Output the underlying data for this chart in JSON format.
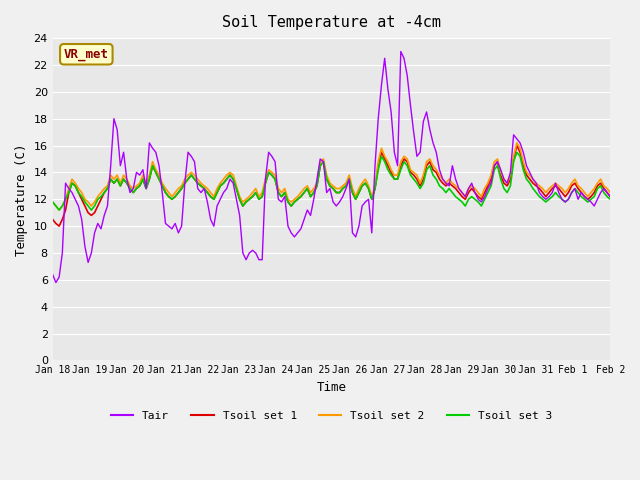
{
  "title": "Soil Temperature at -4cm",
  "xlabel": "Time",
  "ylabel": "Temperature (C)",
  "ylim": [
    0,
    24
  ],
  "yticks": [
    0,
    2,
    4,
    6,
    8,
    10,
    12,
    14,
    16,
    18,
    20,
    22,
    24
  ],
  "bg_color": "#e8e8e8",
  "fig_color": "#f0f0f0",
  "line_colors": {
    "Tair": "#aa00ff",
    "Tsoil1": "#dd0000",
    "Tsoil2": "#ff9900",
    "Tsoil3": "#00cc00"
  },
  "legend_labels": [
    "Tair",
    "Tsoil set 1",
    "Tsoil set 2",
    "Tsoil set 3"
  ],
  "annotation_text": "VR_met",
  "annotation_bg": "#ffffcc",
  "annotation_border": "#aa8800",
  "annotation_text_color": "#880000",
  "font_family": "monospace",
  "n_days": 16,
  "start_day": 18,
  "xtick_labels": [
    "Jan 18",
    "Jan 19",
    "Jan 20",
    "Jan 21",
    "Jan 22",
    "Jan 23",
    "Jan 24",
    "Jan 25",
    "Jan 26",
    "Jan 27",
    "Jan 28",
    "Jan 29",
    "Jan 30",
    "Jan 31",
    "Feb 1",
    "Feb 2"
  ],
  "tair": [
    6.4,
    5.8,
    6.2,
    8.0,
    13.2,
    12.8,
    12.5,
    12.0,
    11.5,
    10.5,
    8.5,
    7.3,
    8.0,
    9.5,
    10.2,
    9.8,
    10.8,
    11.5,
    14.5,
    18.0,
    17.2,
    14.5,
    15.5,
    13.5,
    12.5,
    12.8,
    14.0,
    13.8,
    14.2,
    12.8,
    16.2,
    15.8,
    15.5,
    14.5,
    12.5,
    10.2,
    10.0,
    9.8,
    10.2,
    9.5,
    10.0,
    13.2,
    15.5,
    15.2,
    14.8,
    12.8,
    12.5,
    12.8,
    11.8,
    10.5,
    10.0,
    11.5,
    12.0,
    12.5,
    12.8,
    13.5,
    13.2,
    12.0,
    10.8,
    8.0,
    7.5,
    8.0,
    8.2,
    8.0,
    7.5,
    7.5,
    13.5,
    15.5,
    15.2,
    14.8,
    12.0,
    11.8,
    12.2,
    10.0,
    9.5,
    9.2,
    9.5,
    9.8,
    10.5,
    11.2,
    10.8,
    12.0,
    13.5,
    15.0,
    14.8,
    12.5,
    12.8,
    11.8,
    11.5,
    11.8,
    12.2,
    12.8,
    13.5,
    9.5,
    9.2,
    10.0,
    11.5,
    11.8,
    12.0,
    9.5,
    14.5,
    18.0,
    20.5,
    22.5,
    20.2,
    18.5,
    15.5,
    14.5,
    23.0,
    22.5,
    21.2,
    19.0,
    17.0,
    15.2,
    15.5,
    17.8,
    18.5,
    17.2,
    16.2,
    15.5,
    14.2,
    13.5,
    13.2,
    13.0,
    14.5,
    13.5,
    12.8,
    12.5,
    12.2,
    12.8,
    13.2,
    12.5,
    12.0,
    11.8,
    12.2,
    12.8,
    13.2,
    14.5,
    14.8,
    14.2,
    13.5,
    13.2,
    14.0,
    16.8,
    16.5,
    16.2,
    15.5,
    14.5,
    14.0,
    13.5,
    13.2,
    12.5,
    12.2,
    12.0,
    12.2,
    12.5,
    13.2,
    12.5,
    12.0,
    11.8,
    12.0,
    12.5,
    12.8,
    12.0,
    12.5,
    12.2,
    12.0,
    11.8,
    11.5,
    12.0,
    12.5,
    12.8,
    12.5,
    12.2
  ],
  "tsoil1": [
    10.5,
    10.2,
    10.0,
    10.5,
    11.2,
    12.5,
    13.2,
    13.0,
    12.5,
    12.0,
    11.5,
    11.0,
    10.8,
    11.0,
    11.5,
    12.0,
    12.5,
    12.8,
    13.5,
    13.2,
    13.5,
    13.0,
    13.5,
    13.2,
    12.8,
    12.5,
    12.8,
    13.0,
    13.5,
    12.8,
    13.5,
    14.5,
    14.0,
    13.5,
    13.0,
    12.5,
    12.2,
    12.0,
    12.2,
    12.5,
    12.8,
    13.2,
    13.5,
    13.8,
    13.5,
    13.2,
    13.0,
    12.8,
    12.5,
    12.2,
    12.0,
    12.5,
    13.0,
    13.2,
    13.5,
    13.8,
    13.5,
    12.8,
    12.0,
    11.5,
    11.8,
    12.0,
    12.2,
    12.5,
    12.0,
    12.2,
    13.2,
    14.0,
    13.8,
    13.5,
    12.5,
    12.2,
    12.5,
    11.8,
    11.5,
    11.8,
    12.0,
    12.2,
    12.5,
    12.8,
    12.2,
    12.5,
    13.0,
    14.5,
    14.8,
    13.5,
    13.0,
    12.8,
    12.5,
    12.5,
    12.8,
    13.0,
    13.5,
    12.5,
    12.0,
    12.5,
    13.0,
    13.2,
    12.8,
    12.0,
    12.8,
    14.5,
    15.5,
    15.0,
    14.5,
    14.0,
    13.5,
    13.5,
    14.5,
    15.0,
    14.8,
    14.0,
    13.8,
    13.5,
    13.0,
    13.5,
    14.5,
    14.8,
    14.2,
    14.0,
    13.5,
    13.2,
    13.0,
    13.2,
    13.0,
    12.8,
    12.5,
    12.2,
    12.0,
    12.5,
    12.8,
    12.5,
    12.2,
    12.0,
    12.5,
    13.0,
    13.5,
    14.5,
    14.8,
    13.8,
    13.2,
    13.0,
    13.5,
    15.0,
    16.0,
    15.5,
    14.5,
    13.8,
    13.5,
    13.2,
    13.0,
    12.8,
    12.5,
    12.2,
    12.5,
    12.8,
    13.0,
    12.8,
    12.5,
    12.2,
    12.5,
    13.0,
    13.2,
    12.8,
    12.5,
    12.2,
    12.0,
    12.2,
    12.5,
    13.0,
    13.2,
    12.8,
    12.5,
    12.2
  ],
  "tsoil2": [
    11.8,
    11.5,
    11.2,
    11.5,
    12.0,
    12.8,
    13.5,
    13.2,
    12.8,
    12.5,
    12.0,
    11.8,
    11.5,
    11.8,
    12.2,
    12.5,
    12.8,
    13.0,
    13.8,
    13.5,
    13.8,
    13.2,
    13.8,
    13.5,
    13.0,
    12.8,
    13.0,
    13.2,
    13.8,
    13.2,
    13.8,
    14.8,
    14.2,
    13.8,
    13.2,
    12.8,
    12.5,
    12.2,
    12.5,
    12.8,
    13.0,
    13.5,
    13.8,
    14.0,
    13.8,
    13.5,
    13.2,
    13.0,
    12.8,
    12.5,
    12.2,
    12.8,
    13.2,
    13.5,
    13.8,
    14.0,
    13.8,
    13.0,
    12.2,
    11.8,
    12.0,
    12.2,
    12.5,
    12.8,
    12.2,
    12.5,
    13.5,
    14.2,
    14.0,
    13.8,
    12.8,
    12.5,
    12.8,
    12.0,
    11.8,
    12.0,
    12.2,
    12.5,
    12.8,
    13.0,
    12.5,
    12.8,
    13.2,
    14.8,
    15.0,
    13.8,
    13.2,
    13.0,
    12.8,
    12.8,
    13.0,
    13.2,
    13.8,
    12.8,
    12.2,
    12.8,
    13.2,
    13.5,
    13.0,
    12.2,
    13.0,
    14.8,
    15.8,
    15.2,
    14.8,
    14.2,
    13.8,
    13.8,
    14.8,
    15.2,
    15.0,
    14.2,
    14.0,
    13.8,
    13.2,
    13.8,
    14.8,
    15.0,
    14.5,
    14.2,
    13.8,
    13.5,
    13.2,
    13.5,
    13.2,
    13.0,
    12.8,
    12.5,
    12.2,
    12.8,
    13.0,
    12.8,
    12.5,
    12.2,
    12.8,
    13.2,
    13.8,
    14.8,
    15.0,
    14.0,
    13.5,
    13.2,
    13.8,
    15.2,
    16.2,
    15.8,
    14.8,
    14.0,
    13.8,
    13.5,
    13.2,
    13.0,
    12.8,
    12.5,
    12.8,
    13.0,
    13.2,
    13.0,
    12.8,
    12.5,
    12.8,
    13.2,
    13.5,
    13.0,
    12.8,
    12.5,
    12.2,
    12.5,
    12.8,
    13.2,
    13.5,
    13.0,
    12.8,
    12.5
  ],
  "tsoil3": [
    11.8,
    11.5,
    11.2,
    11.5,
    12.0,
    12.5,
    13.2,
    13.0,
    12.5,
    12.2,
    11.8,
    11.5,
    11.2,
    11.5,
    12.0,
    12.2,
    12.5,
    12.8,
    13.5,
    13.2,
    13.5,
    13.0,
    13.5,
    13.2,
    12.8,
    12.5,
    12.8,
    13.0,
    13.5,
    12.8,
    13.5,
    14.5,
    14.0,
    13.5,
    13.0,
    12.5,
    12.2,
    12.0,
    12.2,
    12.5,
    12.8,
    13.2,
    13.5,
    13.8,
    13.5,
    13.2,
    13.0,
    12.8,
    12.5,
    12.2,
    12.0,
    12.5,
    13.0,
    13.2,
    13.5,
    13.8,
    13.5,
    12.8,
    12.0,
    11.5,
    11.8,
    12.0,
    12.2,
    12.5,
    12.0,
    12.2,
    13.2,
    14.0,
    13.8,
    13.5,
    12.5,
    12.2,
    12.5,
    11.8,
    11.5,
    11.8,
    12.0,
    12.2,
    12.5,
    12.8,
    12.2,
    12.5,
    13.0,
    14.5,
    14.8,
    13.5,
    13.0,
    12.8,
    12.5,
    12.5,
    12.8,
    13.0,
    13.5,
    12.5,
    12.0,
    12.5,
    13.0,
    13.2,
    12.8,
    12.0,
    12.8,
    14.2,
    15.2,
    14.8,
    14.2,
    13.8,
    13.5,
    13.5,
    14.2,
    14.8,
    14.5,
    13.8,
    13.5,
    13.2,
    12.8,
    13.2,
    14.2,
    14.5,
    13.8,
    13.5,
    13.0,
    12.8,
    12.5,
    12.8,
    12.5,
    12.2,
    12.0,
    11.8,
    11.5,
    12.0,
    12.2,
    12.0,
    11.8,
    11.5,
    12.0,
    12.5,
    13.0,
    14.2,
    14.5,
    13.5,
    12.8,
    12.5,
    13.0,
    14.8,
    15.5,
    15.2,
    14.2,
    13.5,
    13.2,
    12.8,
    12.5,
    12.2,
    12.0,
    11.8,
    12.0,
    12.2,
    12.5,
    12.2,
    12.0,
    11.8,
    12.0,
    12.5,
    12.8,
    12.5,
    12.2,
    12.0,
    11.8,
    12.0,
    12.2,
    12.8,
    13.0,
    12.5,
    12.2,
    12.0
  ]
}
